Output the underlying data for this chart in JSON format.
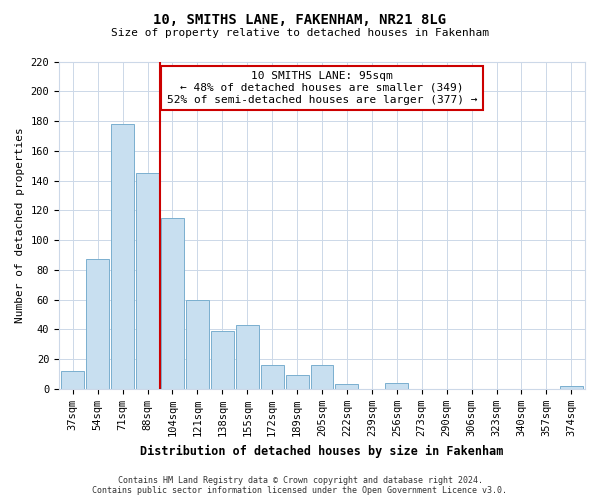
{
  "title": "10, SMITHS LANE, FAKENHAM, NR21 8LG",
  "subtitle": "Size of property relative to detached houses in Fakenham",
  "xlabel": "Distribution of detached houses by size in Fakenham",
  "ylabel": "Number of detached properties",
  "categories": [
    "37sqm",
    "54sqm",
    "71sqm",
    "88sqm",
    "104sqm",
    "121sqm",
    "138sqm",
    "155sqm",
    "172sqm",
    "189sqm",
    "205sqm",
    "222sqm",
    "239sqm",
    "256sqm",
    "273sqm",
    "290sqm",
    "306sqm",
    "323sqm",
    "340sqm",
    "357sqm",
    "374sqm"
  ],
  "values": [
    12,
    87,
    178,
    145,
    115,
    60,
    39,
    43,
    16,
    9,
    16,
    3,
    0,
    4,
    0,
    0,
    0,
    0,
    0,
    0,
    2
  ],
  "bar_color": "#c8dff0",
  "bar_edge_color": "#7aafcf",
  "vline_x_idx": 3.5,
  "vline_color": "#cc0000",
  "annotation_line1": "10 SMITHS LANE: 95sqm",
  "annotation_line2": "← 48% of detached houses are smaller (349)",
  "annotation_line3": "52% of semi-detached houses are larger (377) →",
  "annotation_box_color": "#ffffff",
  "annotation_box_edge": "#cc0000",
  "ylim": [
    0,
    220
  ],
  "yticks": [
    0,
    20,
    40,
    60,
    80,
    100,
    120,
    140,
    160,
    180,
    200,
    220
  ],
  "footer_line1": "Contains HM Land Registry data © Crown copyright and database right 2024.",
  "footer_line2": "Contains public sector information licensed under the Open Government Licence v3.0.",
  "background_color": "#ffffff",
  "grid_color": "#ccd8e8",
  "title_fontsize": 10,
  "subtitle_fontsize": 8,
  "ylabel_fontsize": 8,
  "xlabel_fontsize": 8.5,
  "tick_fontsize": 7.5,
  "footer_fontsize": 6
}
